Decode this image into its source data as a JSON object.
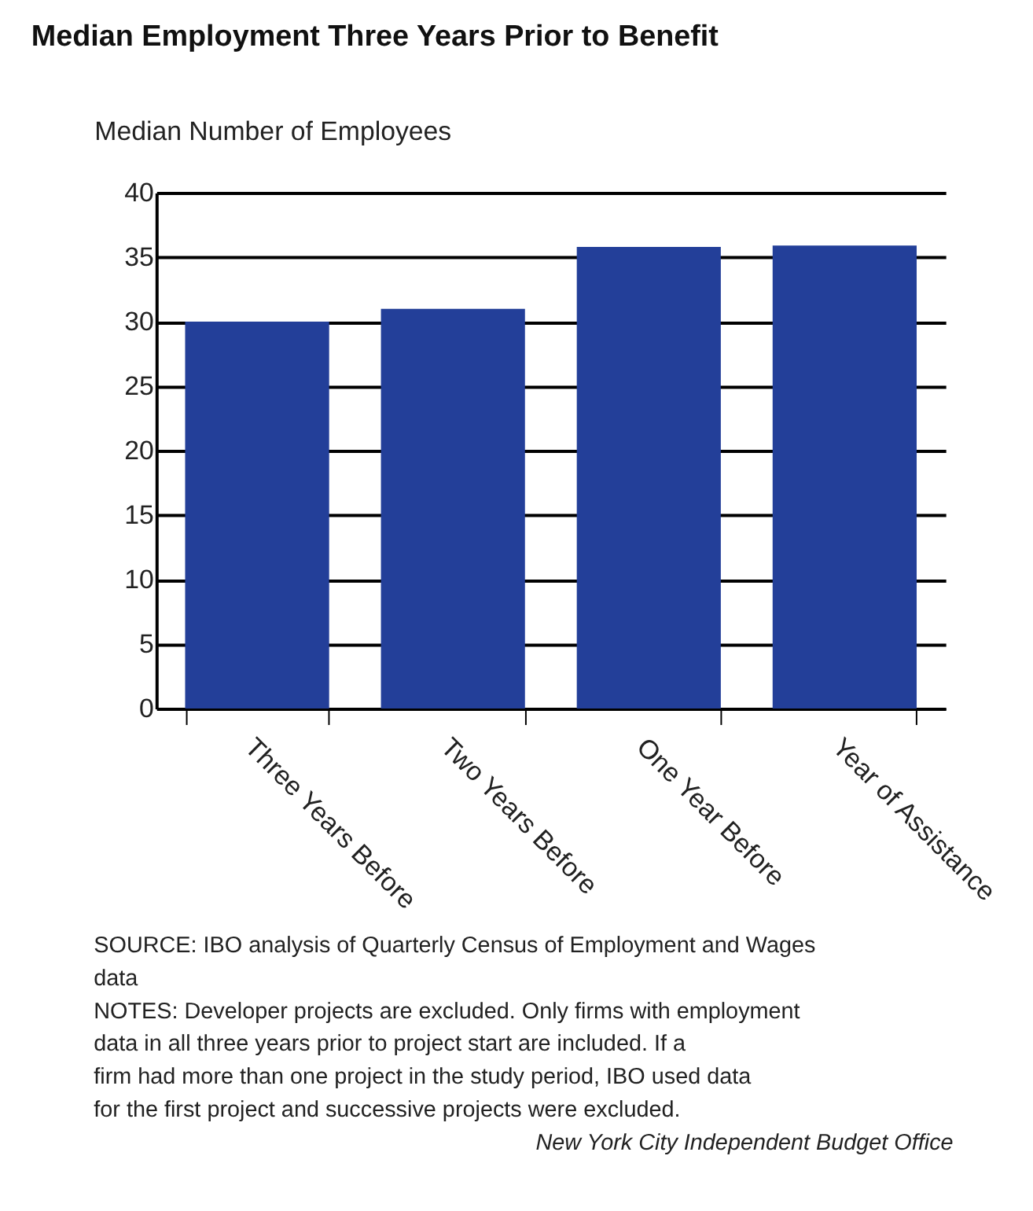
{
  "chart_data": {
    "type": "bar",
    "title": "Median Employment Three Years Prior to Benefit",
    "ylabel": "Median Number of Employees",
    "categories": [
      "Three Years Before",
      "Two Years Before",
      "One Year Before",
      "Year of Assistance"
    ],
    "values": [
      30,
      31,
      35.8,
      35.9
    ],
    "color": "#233f99",
    "ylim": [
      0,
      40
    ],
    "yticks": [
      0,
      5,
      10,
      15,
      20,
      25,
      30,
      35,
      40
    ],
    "grid": "y",
    "annotations": [
      "SOURCE: IBO analysis of Quarterly Census of Employment and Wages data",
      "NOTES: Developer projects are excluded. Only firms with employment data in all three years prior to project start are included. If a firm had more than one project in the study period, IBO used data for the first project and successive projects were excluded.",
      "New York City Independent Budget Office"
    ]
  }
}
